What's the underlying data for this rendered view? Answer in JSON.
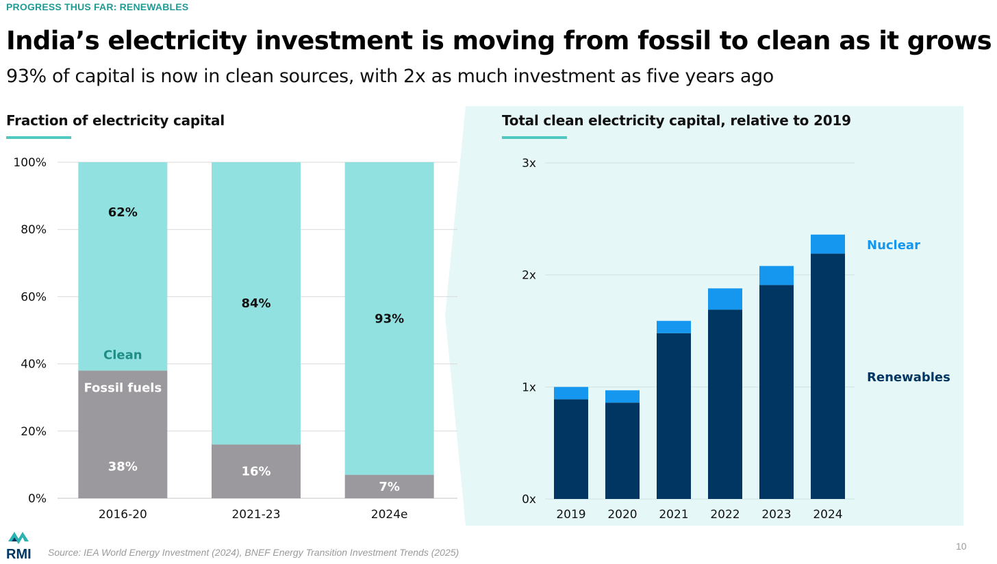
{
  "header": {
    "kicker": "PROGRESS THUS FAR: RENEWABLES",
    "title": "India’s electricity investment is moving from fossil to clean as it grows",
    "subtitle": "93% of capital is now in clean sources, with 2x as much investment as five years ago"
  },
  "colors": {
    "accent": "#1f9a94",
    "underline": "#4fc8c2",
    "clean": "#91e1e0",
    "fossil": "#9b999e",
    "renewables": "#003661",
    "nuclear": "#1596ef",
    "panel_bg": "#e6f7f7",
    "grid": "#d9d9d9"
  },
  "chart_data": [
    {
      "type": "bar",
      "stacked": true,
      "title": "Fraction of electricity capital",
      "categories": [
        "2016-20",
        "2021-23",
        "2024e"
      ],
      "series": [
        {
          "name": "Fossil fuels",
          "values": [
            38,
            16,
            7
          ],
          "labels": [
            "38%",
            "16%",
            "7%"
          ]
        },
        {
          "name": "Clean",
          "values": [
            62,
            84,
            93
          ],
          "labels": [
            "62%",
            "84%",
            "93%"
          ]
        }
      ],
      "y_ticks": [
        "0%",
        "20%",
        "40%",
        "60%",
        "80%",
        "100%"
      ],
      "ylim": [
        0,
        100
      ],
      "grid": true
    },
    {
      "type": "bar",
      "stacked": true,
      "title": "Total clean electricity capital, relative to 2019",
      "categories": [
        "2019",
        "2020",
        "2021",
        "2022",
        "2023",
        "2024"
      ],
      "series": [
        {
          "name": "Renewables",
          "values": [
            0.89,
            0.86,
            1.48,
            1.69,
            1.91,
            2.19
          ]
        },
        {
          "name": "Nuclear",
          "values": [
            0.11,
            0.11,
            0.11,
            0.19,
            0.17,
            0.17
          ]
        }
      ],
      "y_ticks": [
        "0x",
        "1x",
        "2x",
        "3x"
      ],
      "ylim": [
        0,
        3
      ],
      "grid": true,
      "legend_placement": "right"
    }
  ],
  "footer": {
    "logo_text": "RMI",
    "source": "Source: IEA World Energy Investment (2024), BNEF Energy Transition Investment Trends (2025)",
    "page_number": "10"
  }
}
